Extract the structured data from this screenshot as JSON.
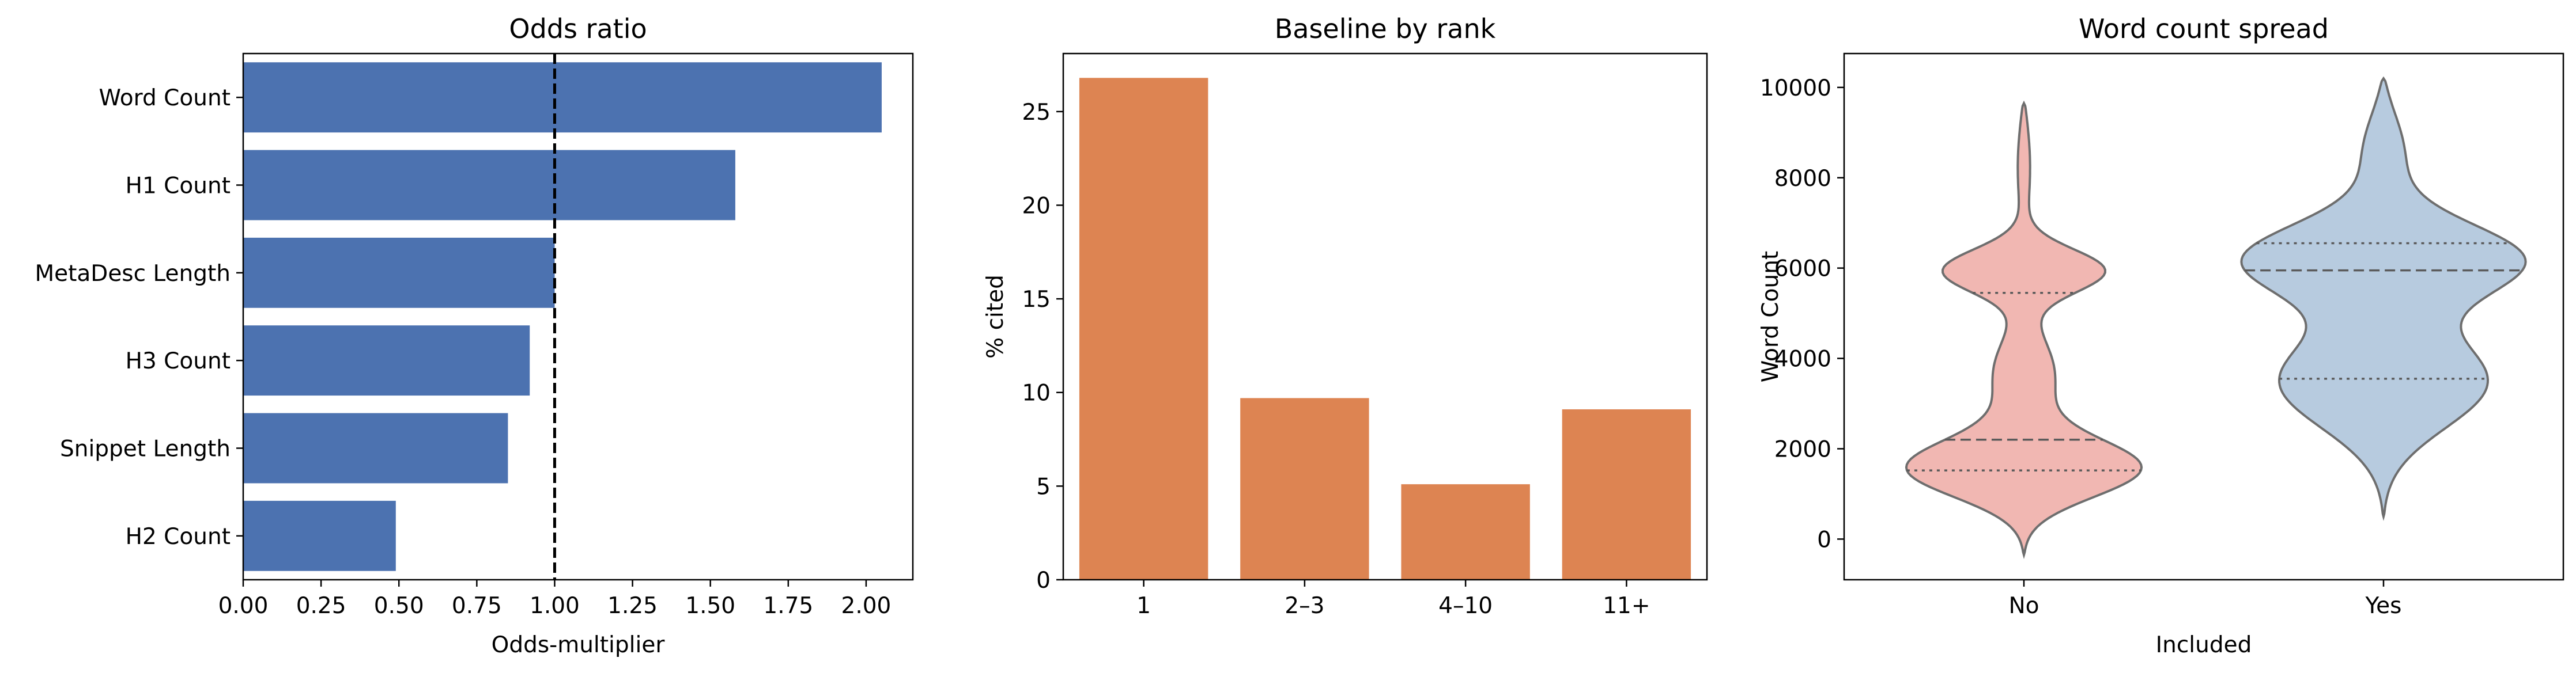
{
  "chart_data": [
    {
      "type": "bar",
      "orientation": "horizontal",
      "title": "Odds ratio",
      "xlabel": "Odds-multiplier",
      "ylabel": "",
      "categories": [
        "Word Count",
        "H1 Count",
        "MetaDesc Length",
        "H3 Count",
        "Snippet Length",
        "H2 Count"
      ],
      "values": [
        2.05,
        1.58,
        1.0,
        0.92,
        0.85,
        0.49
      ],
      "xlim": [
        0,
        2.15
      ],
      "xticks": [
        "0.00",
        "0.25",
        "0.50",
        "0.75",
        "1.00",
        "1.25",
        "1.50",
        "1.75",
        "2.00"
      ],
      "reference_line": {
        "x": 1.0,
        "style": "dashed"
      },
      "color": "#4c72b0",
      "grid": false
    },
    {
      "type": "bar",
      "title": "Baseline by rank",
      "xlabel": "",
      "ylabel": "% cited",
      "categories": [
        "1",
        "2–3",
        "4–10",
        "11+"
      ],
      "values": [
        26.8,
        9.7,
        5.1,
        9.1
      ],
      "ylim": [
        0,
        28.1
      ],
      "yticks": [
        "0",
        "5",
        "10",
        "15",
        "20",
        "25"
      ],
      "color": "#dd8452",
      "grid": false
    },
    {
      "type": "violin",
      "title": "Word count spread",
      "xlabel": "Included",
      "ylabel": "Word Count",
      "categories": [
        "No",
        "Yes"
      ],
      "ylim": [
        -900,
        10750
      ],
      "yticks": [
        "0",
        "2000",
        "4000",
        "6000",
        "8000",
        "10000"
      ],
      "series": [
        {
          "category": "No",
          "color": "#f1b7b2",
          "range": [
            -350,
            9650
          ],
          "quartiles": {
            "q1": 1520,
            "median": 2200,
            "q3": 5450
          }
        },
        {
          "category": "Yes",
          "color": "#b7cbdf",
          "range": [
            500,
            10200
          ],
          "quartiles": {
            "q1": 3550,
            "median": 5950,
            "q3": 6550
          }
        }
      ],
      "grid": false
    }
  ]
}
